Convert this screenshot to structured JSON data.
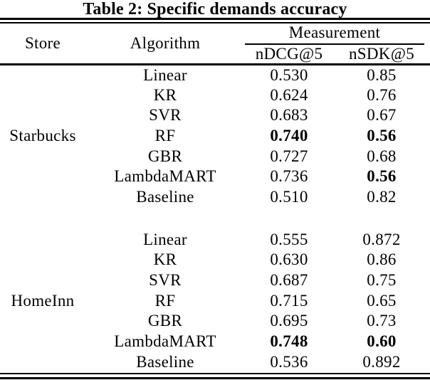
{
  "title": "Table 2: Specific demands accuracy",
  "colors": {
    "text": "#000000",
    "background": "#ffffff",
    "rule": "#000000"
  },
  "table": {
    "headers": {
      "store": "Store",
      "algorithm": "Algorithm",
      "measurement": "Measurement",
      "metric1": "nDCG@5",
      "metric2": "nSDK@5"
    },
    "sections": [
      {
        "store": "Starbucks",
        "rows": [
          {
            "algorithm": "Linear",
            "ndcg": "0.530",
            "nsdk": "0.85",
            "ndcg_bold": false,
            "nsdk_bold": false
          },
          {
            "algorithm": "KR",
            "ndcg": "0.624",
            "nsdk": "0.76",
            "ndcg_bold": false,
            "nsdk_bold": false
          },
          {
            "algorithm": "SVR",
            "ndcg": "0.683",
            "nsdk": "0.67",
            "ndcg_bold": false,
            "nsdk_bold": false
          },
          {
            "algorithm": "RF",
            "ndcg": "0.740",
            "nsdk": "0.56",
            "ndcg_bold": true,
            "nsdk_bold": true
          },
          {
            "algorithm": "GBR",
            "ndcg": "0.727",
            "nsdk": "0.68",
            "ndcg_bold": false,
            "nsdk_bold": false
          },
          {
            "algorithm": "LambdaMART",
            "ndcg": "0.736",
            "nsdk": "0.56",
            "ndcg_bold": false,
            "nsdk_bold": true
          },
          {
            "algorithm": "Baseline",
            "ndcg": "0.510",
            "nsdk": "0.82",
            "ndcg_bold": false,
            "nsdk_bold": false
          }
        ]
      },
      {
        "store": "HomeInn",
        "rows": [
          {
            "algorithm": "Linear",
            "ndcg": "0.555",
            "nsdk": "0.872",
            "ndcg_bold": false,
            "nsdk_bold": false
          },
          {
            "algorithm": "KR",
            "ndcg": "0.630",
            "nsdk": "0.86",
            "ndcg_bold": false,
            "nsdk_bold": false
          },
          {
            "algorithm": "SVR",
            "ndcg": "0.687",
            "nsdk": "0.75",
            "ndcg_bold": false,
            "nsdk_bold": false
          },
          {
            "algorithm": "RF",
            "ndcg": "0.715",
            "nsdk": "0.65",
            "ndcg_bold": false,
            "nsdk_bold": false
          },
          {
            "algorithm": "GBR",
            "ndcg": "0.695",
            "nsdk": "0.73",
            "ndcg_bold": false,
            "nsdk_bold": false
          },
          {
            "algorithm": "LambdaMART",
            "ndcg": "0.748",
            "nsdk": "0.60",
            "ndcg_bold": true,
            "nsdk_bold": true
          },
          {
            "algorithm": "Baseline",
            "ndcg": "0.536",
            "nsdk": "0.892",
            "ndcg_bold": false,
            "nsdk_bold": false
          }
        ]
      }
    ]
  }
}
